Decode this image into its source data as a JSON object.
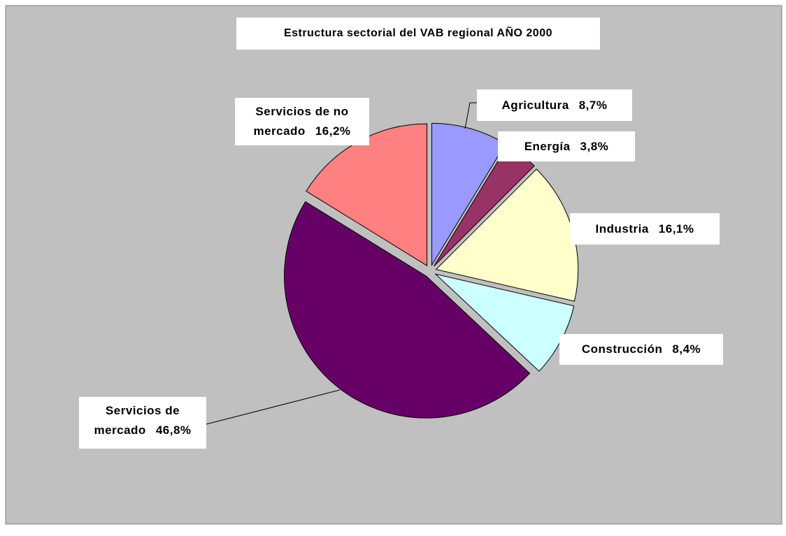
{
  "chart_data": {
    "type": "pie",
    "title": "Estructura sectorial del VAB regional AÑO 2000",
    "categories": [
      "Agricultura",
      "Energía",
      "Industria",
      "Construcción",
      "Servicios de mercado",
      "Servicios de no mercado"
    ],
    "values": [
      8.7,
      3.8,
      16.1,
      8.4,
      46.8,
      16.2
    ],
    "value_labels": [
      "8,7%",
      "3,8%",
      "16,1%",
      "8,4%",
      "46,8%",
      "16,2%"
    ],
    "colors": [
      "#9999ff",
      "#993366",
      "#ffffcc",
      "#ccffff",
      "#660066",
      "#ff8080"
    ]
  }
}
